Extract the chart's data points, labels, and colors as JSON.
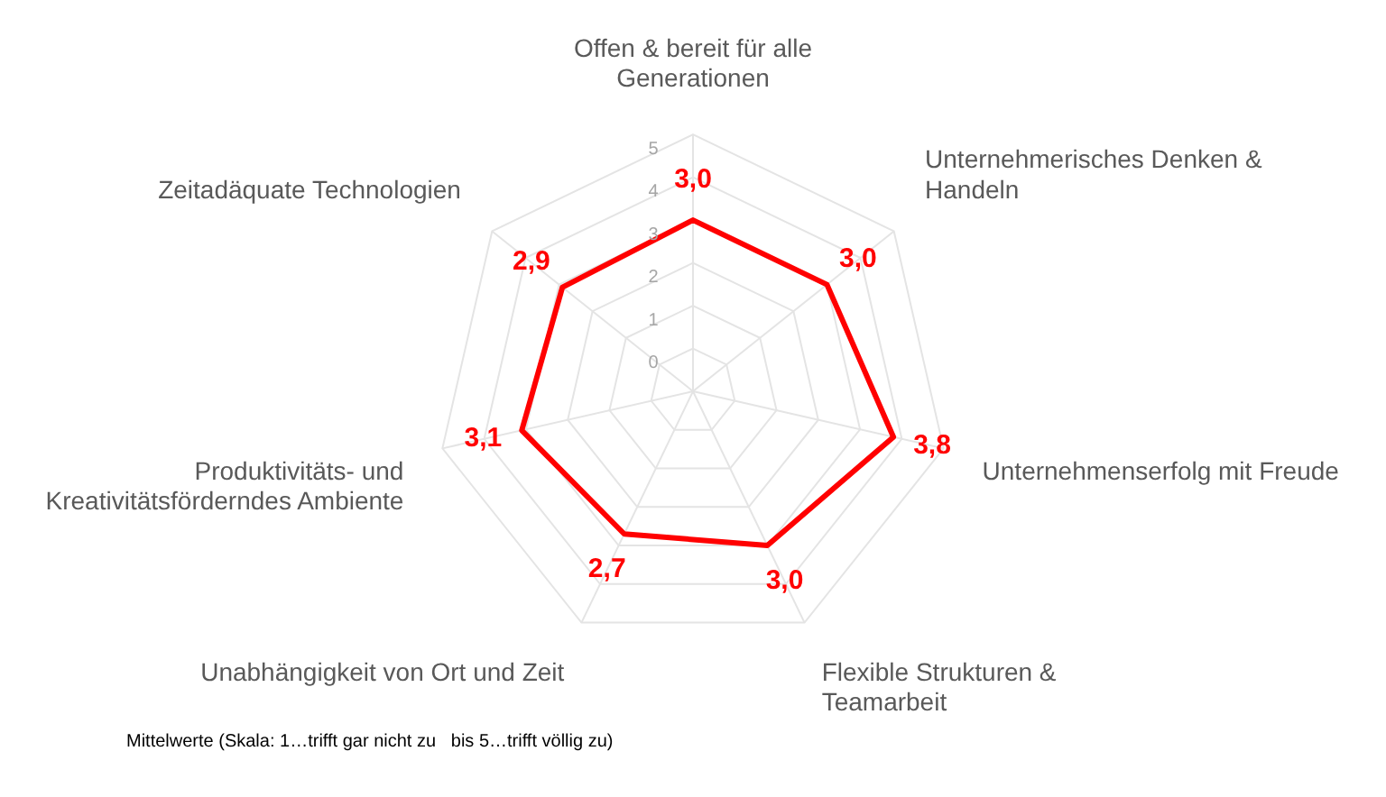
{
  "chart_data": {
    "type": "radar",
    "categories": [
      "Offen & bereit für alle Generationen",
      "Unternehmerisches Denken & Handeln",
      "Unternehmenserfolg mit Freude",
      "Flexible Strukturen & Teamarbeit",
      "Unabhängigkeit von Ort und Zeit",
      "Produktivitäts- und Kreativitätsförderndes Ambiente",
      "Zeitadäquate Technologien"
    ],
    "series": [
      {
        "color": "#ff0000",
        "values": [
          3.0,
          3.0,
          3.8,
          3.0,
          2.7,
          3.1,
          2.9
        ],
        "value_labels": [
          "3,0",
          "3,0",
          "3,8",
          "3,0",
          "2,7",
          "3,1",
          "2,9"
        ]
      }
    ],
    "ylim": [
      -1,
      5
    ],
    "yticks": [
      0,
      1,
      2,
      3,
      4,
      5
    ],
    "grid": true,
    "legend": false,
    "marker": "none",
    "line_style": "solid",
    "annotations": [
      "Mittelwerte (Skala: 1…trifft gar nicht zu   bis 5…trifft völlig zu)"
    ]
  }
}
